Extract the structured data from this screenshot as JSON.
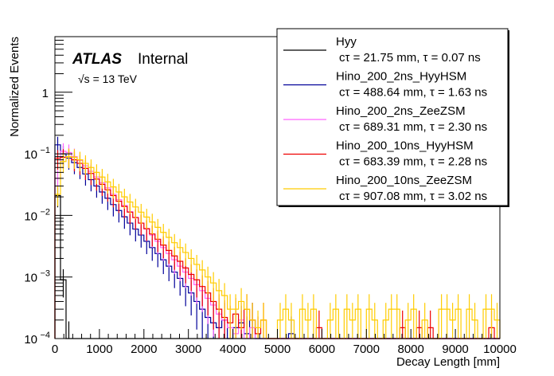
{
  "chart_data": {
    "type": "histogram",
    "title": "",
    "xlabel": "Decay Length [mm]",
    "ylabel": "Normalized Events",
    "xlim": [
      0,
      10000
    ],
    "ylim": [
      0.0001,
      8
    ],
    "yscale": "log",
    "bin_width": 125,
    "grid": false,
    "legend_position": "top-right",
    "x_ticks": [
      0,
      1000,
      2000,
      3000,
      4000,
      5000,
      6000,
      7000,
      8000,
      9000,
      10000
    ],
    "x_tick_labels": [
      "0",
      "1000",
      "2000",
      "3000",
      "4000",
      "5000",
      "6000",
      "7000",
      "8000",
      "9000",
      "10000"
    ],
    "y_ticks": [
      0.0001,
      0.001,
      0.01,
      0.1,
      1
    ],
    "y_tick_labels": [
      {
        "base": "10",
        "exp": "−4"
      },
      {
        "base": "10",
        "exp": "−3"
      },
      {
        "base": "10",
        "exp": "−2"
      },
      {
        "base": "10",
        "exp": "−1"
      },
      {
        "base": "1",
        "exp": ""
      }
    ],
    "annotations": {
      "experiment": "ATLAS",
      "status": "Internal",
      "energy": "√s = 13 TeV"
    },
    "series": [
      {
        "name": "Hyy",
        "subtitle": "cτ = 21.75 mm, τ = 0.07 ns",
        "color": "#000000",
        "values": [
          0.021,
          0.0009,
          0.0001,
          0,
          0,
          0,
          0,
          0,
          0,
          0,
          0,
          0,
          0,
          0,
          0,
          0,
          0,
          0,
          0,
          0,
          0,
          0,
          0,
          0,
          0,
          0,
          0,
          0,
          0,
          0,
          0,
          0,
          0,
          0,
          0,
          0,
          0,
          0,
          0,
          0,
          0,
          0,
          0,
          0,
          0,
          0,
          0,
          0,
          0,
          0,
          0,
          0,
          0,
          0,
          0,
          0,
          0,
          0,
          0,
          0,
          0,
          0,
          0,
          0,
          0,
          0,
          0,
          0,
          0,
          0,
          0,
          0,
          0,
          0,
          0,
          0,
          0,
          0,
          0,
          0
        ]
      },
      {
        "name": "Hino_200_2ns_HyyHSM",
        "subtitle": "cτ = 488.64 mm, τ = 1.63 ns",
        "color": "#000099",
        "values": [
          0.14,
          0.1,
          0.085,
          0.072,
          0.06,
          0.047,
          0.038,
          0.03,
          0.024,
          0.019,
          0.015,
          0.012,
          0.0095,
          0.0075,
          0.006,
          0.0048,
          0.0038,
          0.003,
          0.0024,
          0.0019,
          0.0015,
          0.0012,
          0.00095,
          0.0007,
          0.00055,
          0.0004,
          0.0003,
          0.00022,
          0.00018,
          0.00015,
          0.0002,
          0.0001,
          0.00015,
          0.00018,
          0.00012,
          0.0002,
          0,
          0,
          0,
          0,
          0,
          0,
          0.00012,
          0,
          0,
          0,
          0,
          0,
          0,
          0,
          0,
          0,
          0,
          0,
          0,
          0,
          0,
          0,
          0,
          0,
          0,
          0,
          0,
          0,
          0,
          0,
          0,
          0,
          0,
          0,
          0,
          0,
          0,
          0,
          0,
          0,
          0,
          0,
          0,
          0
        ]
      },
      {
        "name": "Hino_200_2ns_ZeeZSM",
        "subtitle": "cτ = 689.31 mm, τ = 2.30 ns",
        "color": "#ff66ff",
        "values": [
          0.04,
          0.11,
          0.105,
          0.09,
          0.078,
          0.064,
          0.052,
          0.042,
          0.034,
          0.028,
          0.022,
          0.018,
          0.0145,
          0.0115,
          0.0093,
          0.0075,
          0.006,
          0.0048,
          0.0038,
          0.003,
          0.0024,
          0.0019,
          0.0015,
          0.0012,
          0.00095,
          0.00075,
          0.0006,
          0.00045,
          0.00035,
          0.00025,
          0.0002,
          0.00015,
          0.00012,
          0.0002,
          0.0001,
          0.00015,
          0,
          0,
          0,
          0,
          0,
          0,
          0,
          0,
          0,
          0,
          0,
          0,
          0,
          0,
          0,
          0,
          0,
          0,
          0,
          0,
          0,
          0,
          0,
          0,
          0,
          0,
          0,
          0,
          0,
          0,
          0,
          0,
          0,
          0,
          0,
          0,
          0,
          0,
          0,
          0,
          0,
          0,
          0,
          0
        ]
      },
      {
        "name": "Hino_200_10ns_HyyHSM",
        "subtitle": "cτ = 683.39 mm, τ = 2.28 ns",
        "color": "#ee0000",
        "values": [
          0.085,
          0.088,
          0.09,
          0.08,
          0.07,
          0.058,
          0.048,
          0.039,
          0.032,
          0.026,
          0.021,
          0.017,
          0.014,
          0.0113,
          0.0092,
          0.0075,
          0.0061,
          0.005,
          0.0041,
          0.0033,
          0.0027,
          0.0022,
          0.0018,
          0.0014,
          0.0011,
          0.0009,
          0.0007,
          0.00055,
          0.0004,
          0.0003,
          0.00022,
          0.00018,
          0.00025,
          0.00015,
          0.0003,
          0.0002,
          0.00012,
          0.0002,
          0,
          0,
          0,
          0,
          0,
          0,
          0,
          0,
          0,
          0.00015,
          0,
          0,
          0,
          0,
          0,
          0,
          0,
          0,
          0,
          0,
          0,
          0,
          0,
          0,
          0.00015,
          0,
          0,
          0.00015,
          0,
          0.00015,
          0,
          0,
          0,
          0,
          0,
          0,
          0,
          0,
          0,
          0,
          0.00015,
          0
        ]
      },
      {
        "name": "Hino_200_10ns_ZeeZSM",
        "subtitle": "cτ = 907.08 mm, τ = 3.02 ns",
        "color": "#ffcc00",
        "values": [
          0.022,
          0.075,
          0.09,
          0.088,
          0.08,
          0.07,
          0.06,
          0.05,
          0.042,
          0.035,
          0.029,
          0.024,
          0.02,
          0.0165,
          0.0137,
          0.0113,
          0.0094,
          0.0078,
          0.0064,
          0.0053,
          0.0044,
          0.0036,
          0.003,
          0.0025,
          0.002,
          0.0016,
          0.0013,
          0.001,
          0.0008,
          0.0006,
          0.0005,
          0.0003,
          0.0003,
          0.0004,
          0.0003,
          0.0002,
          0.00015,
          0.0002,
          0,
          0,
          0.0002,
          0.0003,
          0.0002,
          0,
          0.0003,
          0.0002,
          0.0003,
          0,
          0,
          0.0002,
          0.0003,
          0,
          0.0003,
          0.0002,
          0.0003,
          0,
          0.0003,
          0.0002,
          0,
          0.0002,
          0.0003,
          0.0003,
          0,
          0.0002,
          0.0003,
          0,
          0.0002,
          0,
          0,
          0.0003,
          0.0003,
          0.0002,
          0.0003,
          0,
          0.0003,
          0.0002,
          0,
          0.0003,
          0.0003,
          0.0002
        ]
      }
    ]
  }
}
